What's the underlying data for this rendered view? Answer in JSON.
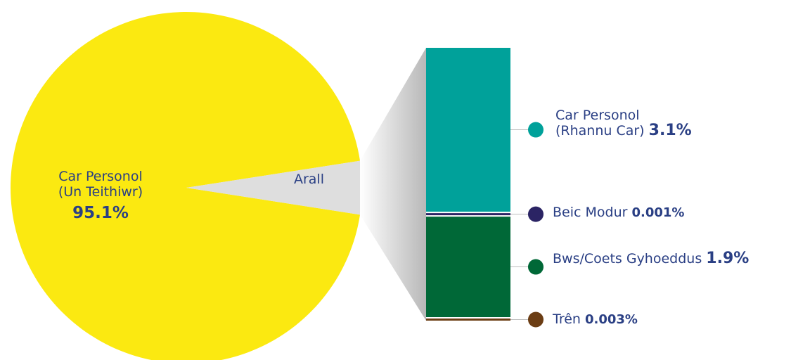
{
  "chart_data": {
    "type": "pie",
    "pie": {
      "slices": [
        {
          "label_line1": "Car Personol",
          "label_line2": "(Un Teithiwr)",
          "value": 95.1,
          "value_label": "95.1%",
          "color": "#fbe911"
        },
        {
          "label": "Arall",
          "value": 4.9,
          "color": "#dedede"
        }
      ]
    },
    "breakdown": {
      "parent": "Arall",
      "segments": [
        {
          "label_line1": "Car Personol",
          "label_line2": "(Rhannu Car)",
          "value": 3.1,
          "value_label": "3.1%",
          "color": "#00a19a"
        },
        {
          "label": "Beic Modur",
          "value": 0.001,
          "value_label": "0.001%",
          "color": "#2b2464"
        },
        {
          "label": "Bws/Coets Gyhoeddus",
          "value": 1.9,
          "value_label": "1.9%",
          "color": "#006837"
        },
        {
          "label": "Trên",
          "value": 0.003,
          "value_label": "0.003%",
          "color": "#6b3d14"
        }
      ]
    }
  }
}
